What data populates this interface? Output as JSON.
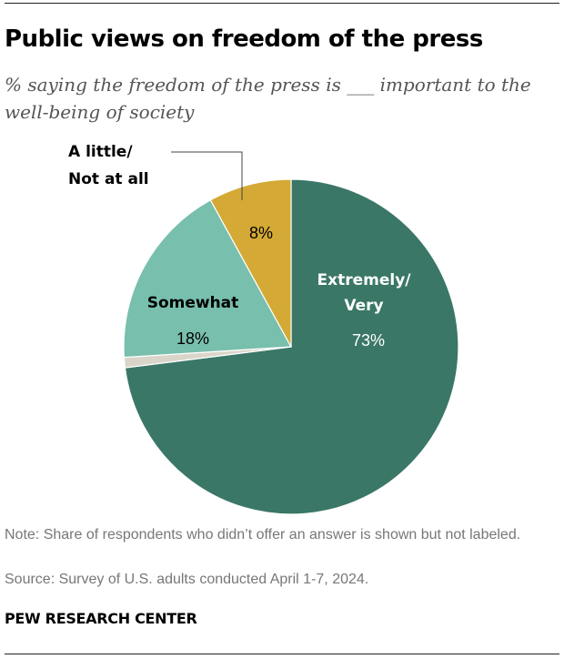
{
  "chart_data": {
    "type": "pie",
    "title": "Public views on freedom of the press",
    "subtitle": "% saying the freedom of the press is ___ important to the well-being of society",
    "slices": [
      {
        "label": [
          "Extremely/",
          "Very"
        ],
        "value": 73,
        "display": "73%",
        "color": "#3a7767"
      },
      {
        "label": [],
        "value": 1,
        "display": "",
        "color": "#d9d5c8"
      },
      {
        "label": [
          "Somewhat"
        ],
        "value": 18,
        "display": "18%",
        "color": "#78bfad"
      },
      {
        "label": [
          "A little/",
          "Not at all"
        ],
        "value": 8,
        "display": "8%",
        "color": "#d4a935"
      }
    ]
  },
  "footer": {
    "note": "Note: Share of respondents who didn’t offer an answer is shown but not labeled.",
    "source": "Source: Survey of U.S. adults conducted April 1-7, 2024.",
    "brand": "PEW RESEARCH CENTER"
  }
}
